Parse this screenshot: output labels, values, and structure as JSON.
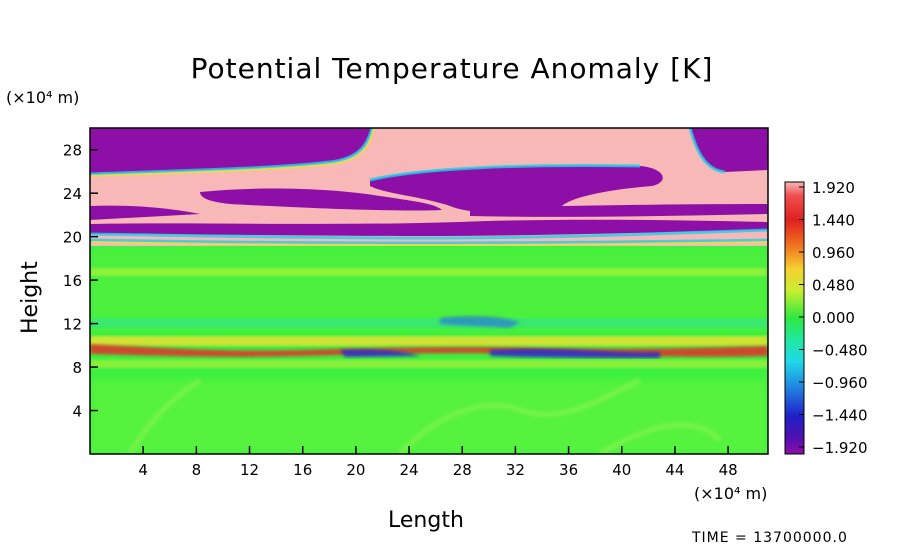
{
  "chart_data": {
    "type": "heatmap",
    "title": "Potential Temperature Anomaly [K]",
    "xlabel": "Length",
    "ylabel": "Height",
    "x_unit": "(×10⁴ m)",
    "y_unit": "(×10⁴ m)",
    "x_ticks": [
      "4",
      "8",
      "12",
      "16",
      "20",
      "24",
      "28",
      "32",
      "36",
      "40",
      "44",
      "48"
    ],
    "y_ticks": [
      "4",
      "8",
      "12",
      "16",
      "20",
      "24",
      "28"
    ],
    "xlim": [
      0,
      51
    ],
    "ylim": [
      0,
      30
    ],
    "colorbar": {
      "labels": [
        "1.920",
        "1.440",
        "0.960",
        "0.480",
        "0.000",
        "−0.480",
        "−0.960",
        "−1.440",
        "−1.920"
      ],
      "range": [
        -1.92,
        1.92
      ]
    },
    "time_label": "TIME = 13700000.0",
    "fields": [
      {
        "name": "upper positive layer",
        "y": [
          22,
          30
        ],
        "value": 1.92
      },
      {
        "name": "negative upper region",
        "y": [
          25.5,
          30
        ],
        "value": -1.92
      },
      {
        "name": "negative band 24",
        "y": [
          22.8,
          24.6
        ],
        "value": -1.92
      },
      {
        "name": "negative band 21",
        "y": [
          20.8,
          21.8
        ],
        "value": -1.92
      },
      {
        "name": "positive band 9.5",
        "y": [
          9,
          10
        ],
        "value": 0.9
      },
      {
        "name": "negative band 9",
        "y": [
          8.8,
          9.5
        ],
        "value": -1.2
      },
      {
        "name": "background",
        "y": [
          0,
          20
        ],
        "value": 0.0
      }
    ]
  }
}
